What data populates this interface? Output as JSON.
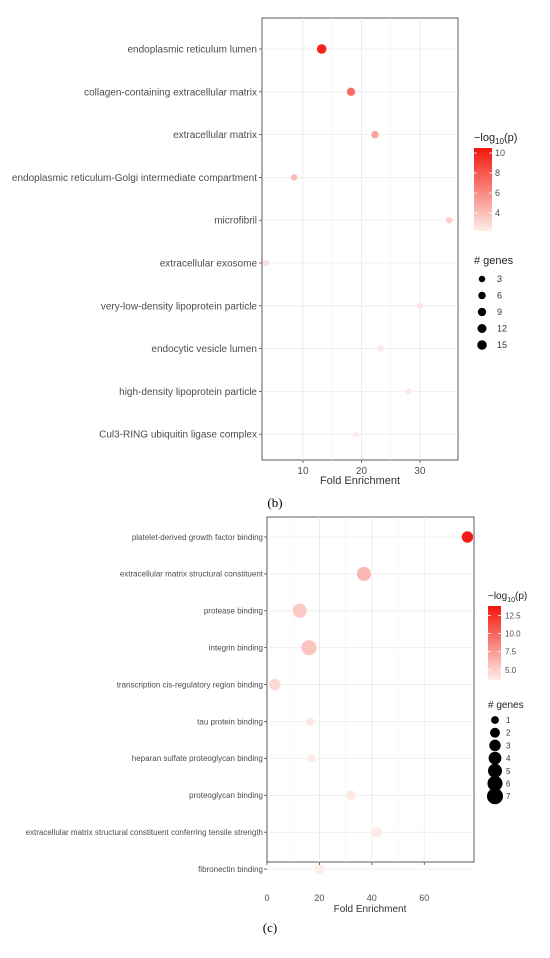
{
  "panel_labels": {
    "b": "(b)",
    "c": "(c)"
  },
  "chart_data": [
    {
      "type": "scatter",
      "panel": "b",
      "xlabel": "Fold Enrichment",
      "xlim": [
        3,
        36.5
      ],
      "x_ticks": [
        10,
        20,
        30
      ],
      "grid": true,
      "categories": [
        "endoplasmic reticulum lumen",
        "collagen-containing extracellular matrix",
        "extracellular matrix",
        "endoplasmic reticulum-Golgi intermediate compartment",
        "microfibril",
        "extracellular exosome",
        "very-low-density lipoprotein particle",
        "endocytic vesicle lumen",
        "high-density lipoprotein particle",
        "Cul3-RING ubiquitin ligase complex"
      ],
      "points": [
        {
          "category": "endoplasmic reticulum lumen",
          "fold_enrichment": 13.2,
          "genes": 15,
          "neg_log10_p": 10.0
        },
        {
          "category": "collagen-containing extracellular matrix",
          "fold_enrichment": 18.2,
          "genes": 9,
          "neg_log10_p": 7.2
        },
        {
          "category": "extracellular matrix",
          "fold_enrichment": 22.3,
          "genes": 6,
          "neg_log10_p": 5.0
        },
        {
          "category": "endoplasmic reticulum-Golgi intermediate compartment",
          "fold_enrichment": 8.5,
          "genes": 3,
          "neg_log10_p": 4.2
        },
        {
          "category": "microfibril",
          "fold_enrichment": 35.0,
          "genes": 3,
          "neg_log10_p": 3.4
        },
        {
          "category": "extracellular exosome",
          "fold_enrichment": 3.7,
          "genes": 3,
          "neg_log10_p": 2.8
        },
        {
          "category": "very-low-density lipoprotein particle",
          "fold_enrichment": 30.0,
          "genes": 2,
          "neg_log10_p": 2.6
        },
        {
          "category": "endocytic vesicle lumen",
          "fold_enrichment": 23.3,
          "genes": 2,
          "neg_log10_p": 2.5
        },
        {
          "category": "high-density lipoprotein particle",
          "fold_enrichment": 28.0,
          "genes": 2,
          "neg_log10_p": 2.4
        },
        {
          "category": "Cul3-RING ubiquitin ligase complex",
          "fold_enrichment": 19.0,
          "genes": 2,
          "neg_log10_p": 2.1
        }
      ],
      "color_legend": {
        "title": "−log",
        "title_sub": "10",
        "title_suffix": "(p)",
        "range": [
          2.2,
          10.5
        ],
        "ticks": [
          4,
          6,
          8,
          10
        ],
        "low_color": "#fdeeea",
        "high_color": "#f4160b"
      },
      "size_legend": {
        "title": "# genes",
        "values": [
          3,
          6,
          9,
          12,
          15
        ]
      }
    },
    {
      "type": "scatter",
      "panel": "c",
      "xlabel": "Fold Enrichment",
      "xlim": [
        0,
        79
      ],
      "x_ticks": [
        0,
        20,
        40,
        60
      ],
      "grid": true,
      "categories": [
        "platelet-derived growth factor binding",
        "extracellular matrix structural constituent",
        "protease binding",
        "integrin binding",
        "transcription cis-regulatory region binding",
        "tau protein binding",
        "heparan sulfate proteoglycan binding",
        "proteoglycan binding",
        "extracellular matrix structural constituent conferring tensile strength",
        "fibronectin binding"
      ],
      "points": [
        {
          "category": "platelet-derived growth factor binding",
          "fold_enrichment": 76.5,
          "genes": 3,
          "neg_log10_p": 13.5
        },
        {
          "category": "extracellular matrix structural constituent",
          "fold_enrichment": 37.0,
          "genes": 5,
          "neg_log10_p": 6.2
        },
        {
          "category": "protease binding",
          "fold_enrichment": 12.5,
          "genes": 5,
          "neg_log10_p": 5.4
        },
        {
          "category": "integrin binding",
          "fold_enrichment": 16.0,
          "genes": 6,
          "neg_log10_p": 5.6
        },
        {
          "category": "transcription cis-regulatory region binding",
          "fold_enrichment": 3.0,
          "genes": 3,
          "neg_log10_p": 4.6
        },
        {
          "category": "tau protein binding",
          "fold_enrichment": 16.5,
          "genes": 1,
          "neg_log10_p": 4.0
        },
        {
          "category": "heparan sulfate proteoglycan binding",
          "fold_enrichment": 17.0,
          "genes": 1,
          "neg_log10_p": 3.8
        },
        {
          "category": "proteoglycan binding",
          "fold_enrichment": 32.0,
          "genes": 2,
          "neg_log10_p": 3.9
        },
        {
          "category": "extracellular matrix structural constituent conferring tensile strength",
          "fold_enrichment": 42.0,
          "genes": 2,
          "neg_log10_p": 3.8
        },
        {
          "category": "fibronectin binding",
          "fold_enrichment": 20.0,
          "genes": 2,
          "neg_log10_p": 3.7
        }
      ],
      "color_legend": {
        "title": "−log",
        "title_sub": "10",
        "title_suffix": "(p)",
        "range": [
          3.6,
          13.8
        ],
        "ticks": [
          5.0,
          7.5,
          10.0,
          12.5
        ],
        "tick_labels": [
          "5.0",
          "7.5",
          "10.0",
          "12.5"
        ],
        "low_color": "#fdeeea",
        "high_color": "#f4160b"
      },
      "size_legend": {
        "title": "# genes",
        "values": [
          1,
          2,
          3,
          4,
          5,
          6,
          7
        ]
      }
    }
  ]
}
